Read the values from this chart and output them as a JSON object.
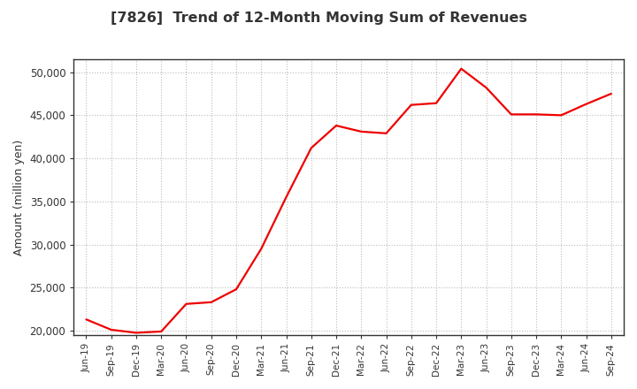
{
  "title": "[7826]  Trend of 12-Month Moving Sum of Revenues",
  "ylabel": "Amount (million yen)",
  "line_color": "#ee0000",
  "background_color": "#ffffff",
  "grid_color": "#bbbbbb",
  "title_color": "#333333",
  "ylim": [
    19500,
    51500
  ],
  "yticks": [
    20000,
    25000,
    30000,
    35000,
    40000,
    45000,
    50000
  ],
  "x_labels": [
    "Jun-19",
    "Sep-19",
    "Dec-19",
    "Mar-20",
    "Jun-20",
    "Sep-20",
    "Dec-20",
    "Mar-21",
    "Jun-21",
    "Sep-21",
    "Dec-21",
    "Mar-22",
    "Jun-22",
    "Sep-22",
    "Dec-22",
    "Mar-23",
    "Jun-23",
    "Sep-23",
    "Dec-23",
    "Mar-24",
    "Jun-24",
    "Sep-24"
  ],
  "values": [
    21300,
    20100,
    19750,
    19900,
    23100,
    23300,
    24800,
    29500,
    35500,
    41200,
    43800,
    43100,
    42900,
    46200,
    46400,
    50400,
    48200,
    45100,
    45100,
    45000,
    46300,
    47500
  ]
}
